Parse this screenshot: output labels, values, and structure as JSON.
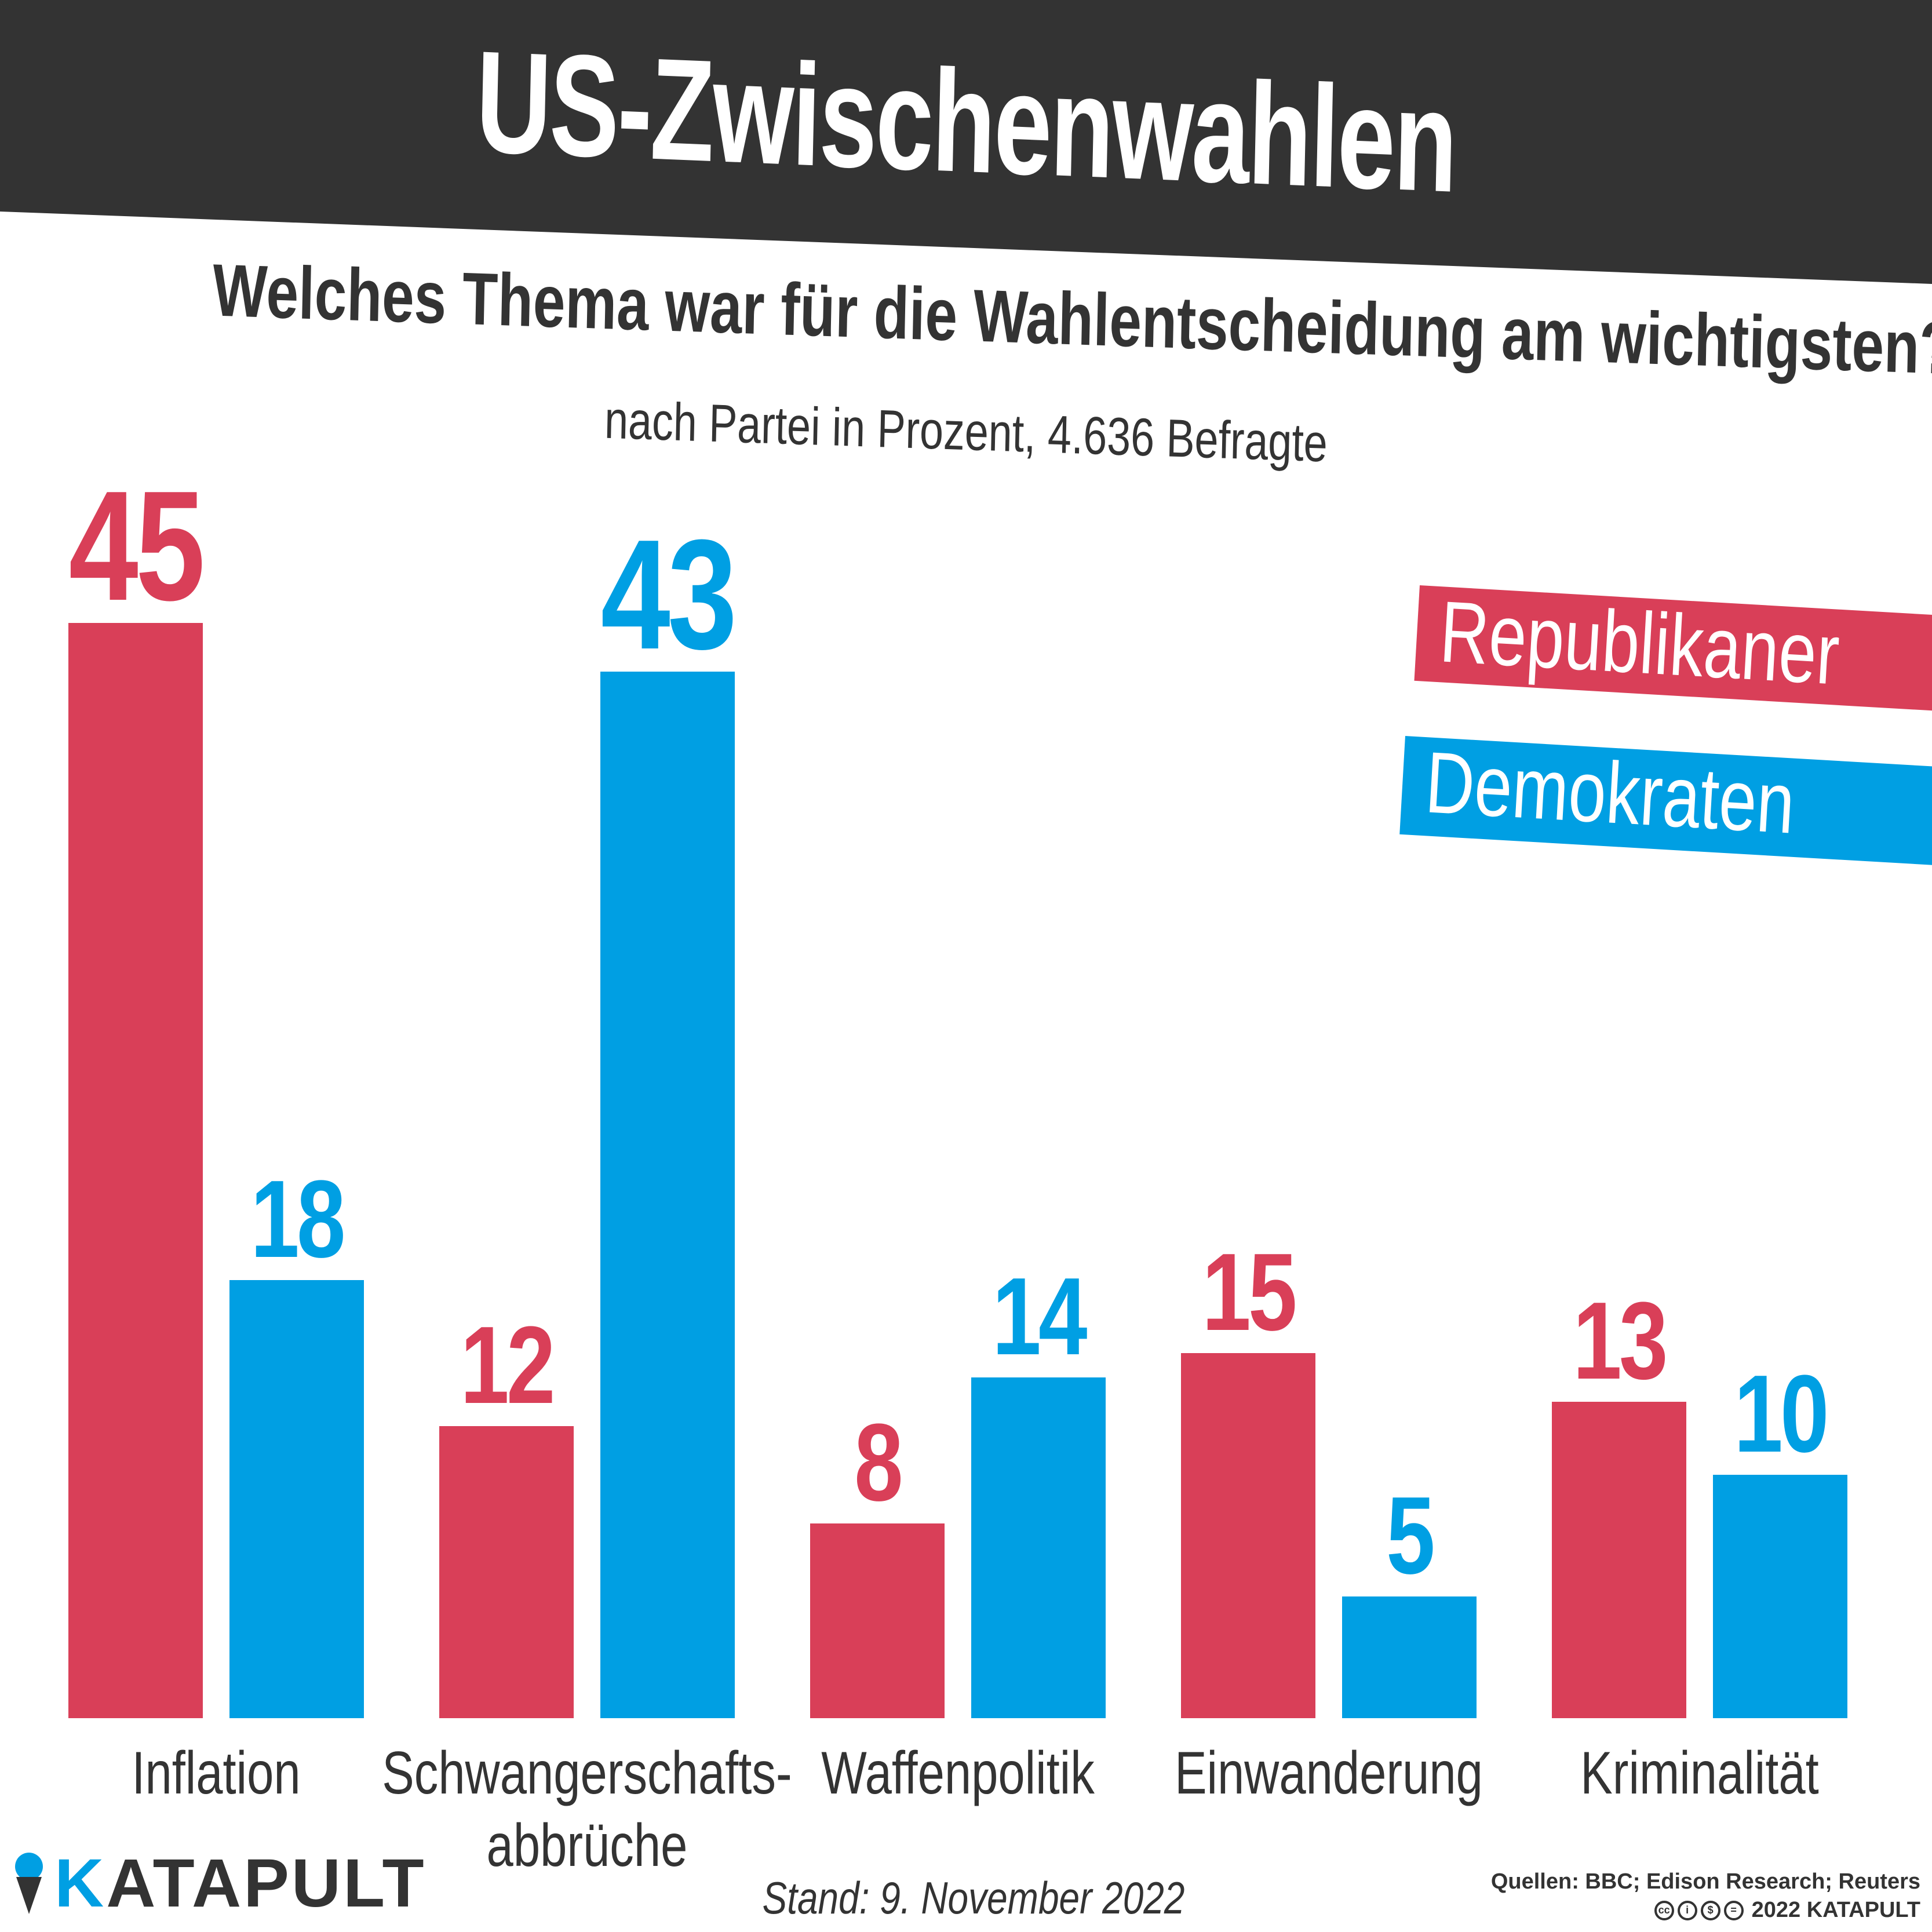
{
  "title": "US-Zwischenwahlen",
  "question": "Welches Thema war für die Wahlentscheidung am wichtigsten?",
  "subtitle": "nach Partei in Prozent, 4.636 Befragte",
  "colors": {
    "republikaner": "#d93f58",
    "demokraten": "#009fe3",
    "banner": "#333333",
    "text": "#333333"
  },
  "chart_data": {
    "type": "bar",
    "categories": [
      "Inflation",
      "Schwangerschafts-\nabbrüche",
      "Waffenpolitik",
      "Einwanderung",
      "Kriminalität"
    ],
    "series": [
      {
        "name": "Republikaner",
        "color": "#d93f58",
        "values": [
          45,
          12,
          8,
          15,
          13
        ]
      },
      {
        "name": "Demokraten",
        "color": "#009fe3",
        "values": [
          18,
          43,
          14,
          5,
          10
        ]
      }
    ],
    "ylim": [
      0,
      45
    ],
    "grid": false,
    "legend": "top-right",
    "data_labels": true
  },
  "footer": {
    "logo_k": "K",
    "logo_rest": "ATAPULT",
    "stand": "Stand: 9. November 2022",
    "sources": "Quellen: BBC; Edison Research; Reuters",
    "copyright": "2022 KATAPULT",
    "license_icons": [
      "cc",
      "by",
      "nc",
      "nd"
    ]
  }
}
